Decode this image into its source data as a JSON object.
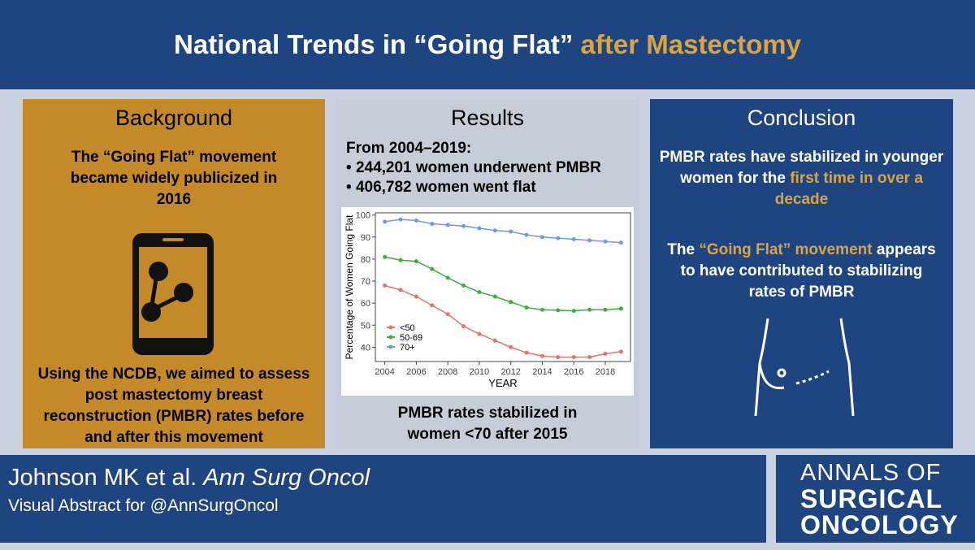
{
  "header": {
    "title_main": "National Trends in “Going Flat”",
    "title_accent": "after Mastectomy"
  },
  "background": {
    "heading": "Background",
    "intro": "The “Going Flat” movement became widely publicized in 2016",
    "aim": "Using the NCDB, we aimed to assess post mastectomy breast reconstruction (PMBR) rates before and after this movement"
  },
  "results": {
    "heading": "Results",
    "lead": "From 2004–2019:",
    "bullets": [
      "244,201 women underwent PMBR",
      "406,782 women went flat"
    ],
    "finding": "PMBR rates stabilized in women <70 after 2015"
  },
  "chart_data": {
    "type": "line",
    "x_label": "YEAR",
    "y_label": "Percentage of Women Going Flat",
    "x": [
      2004,
      2005,
      2006,
      2007,
      2008,
      2009,
      2010,
      2011,
      2012,
      2013,
      2014,
      2015,
      2016,
      2017,
      2018,
      2019
    ],
    "series": [
      {
        "name": "<50",
        "color": "#e5736c",
        "values": [
          68,
          66,
          63,
          59,
          55,
          49.5,
          46,
          43,
          40,
          37.5,
          36,
          35.5,
          35.5,
          35.5,
          37,
          38
        ]
      },
      {
        "name": "50-69",
        "color": "#3cae3c",
        "values": [
          81,
          79.5,
          79,
          75.5,
          71.5,
          68,
          65,
          63,
          60.5,
          58,
          57,
          56.8,
          56.5,
          57,
          57,
          57.5
        ]
      },
      {
        "name": "70+",
        "color": "#6d9ae3",
        "values": [
          97,
          98,
          97.5,
          96,
          95.5,
          95,
          94,
          93,
          92.5,
          91,
          90,
          89.5,
          89,
          88.5,
          88,
          87.5
        ]
      }
    ],
    "xlim": [
      2003.4,
      2019.6
    ],
    "ylim": [
      33.5,
      101
    ],
    "xticks": [
      2004,
      2006,
      2008,
      2010,
      2012,
      2014,
      2016,
      2018
    ],
    "yticks": [
      40,
      50,
      60,
      70,
      80,
      90,
      100
    ]
  },
  "conclusion": {
    "heading": "Conclusion",
    "p1": "PMBR rates have stabilized in younger women for the",
    "p1_accent": "first time in over a decade",
    "p2_start": "The",
    "p2_accent": "“Going Flat” movement",
    "p2_end": "appears to have contributed to stabilizing rates of PMBR"
  },
  "footer": {
    "authors": "Johnson MK et al.",
    "journal": "Ann Surg Oncol",
    "credit": "Visual Abstract for @AnnSurgOncol",
    "logo": [
      "ANNALS OF",
      "SURGICAL",
      "ONCOLOGY"
    ]
  }
}
